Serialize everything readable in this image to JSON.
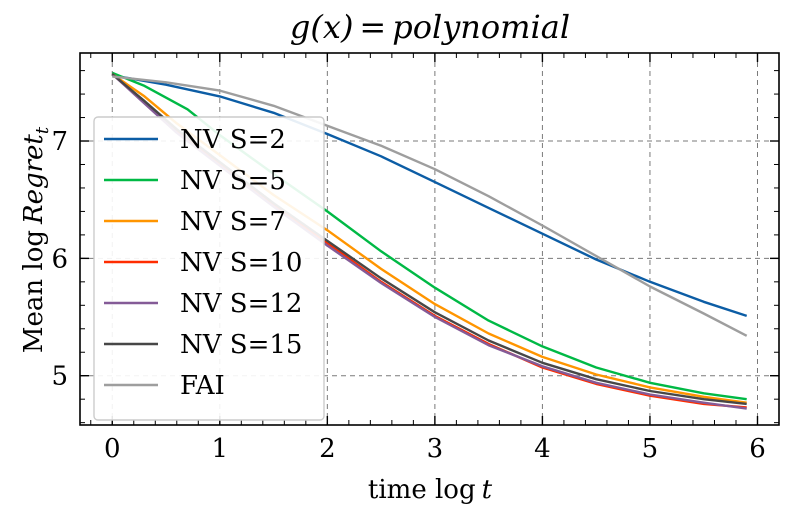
{
  "chart_data": {
    "type": "line",
    "title_math": "g(x)",
    "title_eq": "=",
    "title_word": "polynomial",
    "xlabel_text": "time log",
    "xlabel_var": "t",
    "ylabel_text": "Mean log",
    "ylabel_var": "Regret",
    "ylabel_sub": "t",
    "xlim": [
      -0.3,
      6.2
    ],
    "ylim": [
      4.58,
      7.75
    ],
    "xticks": [
      0,
      1,
      2,
      3,
      4,
      5,
      6
    ],
    "yticks": [
      5,
      6,
      7
    ],
    "grid": true,
    "legend_position": "left",
    "series": [
      {
        "name": "NV S=2",
        "color": "#0C5DA5",
        "x": [
          0,
          0.5,
          1,
          1.5,
          2,
          2.5,
          3,
          3.5,
          4,
          4.5,
          5,
          5.5,
          5.9
        ],
        "y": [
          7.56,
          7.48,
          7.38,
          7.24,
          7.06,
          6.87,
          6.65,
          6.43,
          6.21,
          5.99,
          5.8,
          5.63,
          5.51
        ]
      },
      {
        "name": "NV S=5",
        "color": "#00B945",
        "x": [
          0,
          0.3,
          0.7,
          1,
          1.5,
          2,
          2.5,
          3,
          3.5,
          4,
          4.5,
          5,
          5.5,
          5.9
        ],
        "y": [
          7.58,
          7.47,
          7.27,
          7.05,
          6.72,
          6.4,
          6.06,
          5.75,
          5.47,
          5.25,
          5.07,
          4.94,
          4.85,
          4.8
        ]
      },
      {
        "name": "NV S=7",
        "color": "#FF9500",
        "x": [
          0,
          0.3,
          0.6,
          1,
          1.5,
          2,
          2.5,
          3,
          3.5,
          4,
          4.5,
          5,
          5.5,
          5.9
        ],
        "y": [
          7.57,
          7.38,
          7.15,
          6.88,
          6.54,
          6.24,
          5.91,
          5.61,
          5.36,
          5.16,
          5.01,
          4.9,
          4.82,
          4.77
        ]
      },
      {
        "name": "NV S=10",
        "color": "#FF2C00",
        "x": [
          0,
          0.3,
          0.6,
          1,
          1.5,
          2,
          2.5,
          3,
          3.5,
          4,
          4.5,
          5,
          5.5,
          5.9
        ],
        "y": [
          7.57,
          7.33,
          7.08,
          6.8,
          6.45,
          6.13,
          5.8,
          5.51,
          5.27,
          5.07,
          4.93,
          4.83,
          4.76,
          4.73
        ]
      },
      {
        "name": "NV S=12",
        "color": "#845B97",
        "x": [
          0,
          0.3,
          0.6,
          1,
          1.5,
          2,
          2.5,
          3,
          3.5,
          4,
          4.5,
          5,
          5.5,
          5.9
        ],
        "y": [
          7.57,
          7.32,
          7.07,
          6.79,
          6.44,
          6.11,
          5.79,
          5.5,
          5.26,
          5.08,
          4.94,
          4.84,
          4.77,
          4.72
        ]
      },
      {
        "name": "NV S=15",
        "color": "#474747",
        "x": [
          0,
          0.3,
          0.6,
          1,
          1.5,
          2,
          2.5,
          3,
          3.5,
          4,
          4.5,
          5,
          5.5,
          5.9
        ],
        "y": [
          7.57,
          7.34,
          7.1,
          6.82,
          6.47,
          6.15,
          5.83,
          5.54,
          5.3,
          5.11,
          4.97,
          4.87,
          4.8,
          4.76
        ]
      },
      {
        "name": "FAI",
        "color": "#9E9E9E",
        "x": [
          0,
          0.5,
          1,
          1.5,
          2,
          2.5,
          3,
          3.5,
          4,
          4.5,
          5,
          5.5,
          5.9
        ],
        "y": [
          7.55,
          7.5,
          7.43,
          7.3,
          7.13,
          6.96,
          6.76,
          6.53,
          6.28,
          6.02,
          5.76,
          5.53,
          5.34
        ]
      }
    ]
  }
}
